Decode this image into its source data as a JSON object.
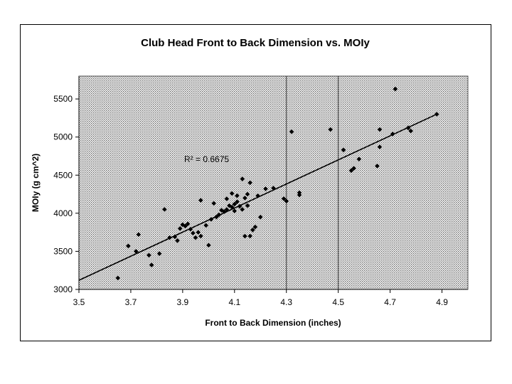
{
  "chart_data": {
    "type": "scatter",
    "title": "Club Head Front to Back Dimension vs. MOIy",
    "xlabel": "Front to Back Dimension (inches)",
    "ylabel": "MOIy (g cm^2)",
    "xlim": [
      3.5,
      5.0
    ],
    "ylim": [
      3000,
      5800
    ],
    "x_ticks": [
      "3.5",
      "3.7",
      "3.9",
      "4.1",
      "4.3",
      "4.5",
      "4.7",
      "4.9"
    ],
    "y_ticks": [
      "3000",
      "3500",
      "4000",
      "4500",
      "5000",
      "5500"
    ],
    "vertical_reference_lines": [
      4.3,
      4.5
    ],
    "annotation": "R² = 0.6675",
    "trendline": {
      "x1": 3.5,
      "y1": 3120,
      "x2": 4.88,
      "y2": 5300
    },
    "background": "stippled grey",
    "grid": false,
    "legend": "none",
    "marker_color": "#000000",
    "points": [
      {
        "x": 3.65,
        "y": 3150
      },
      {
        "x": 3.69,
        "y": 3570
      },
      {
        "x": 3.72,
        "y": 3500
      },
      {
        "x": 3.73,
        "y": 3720
      },
      {
        "x": 3.77,
        "y": 3450
      },
      {
        "x": 3.78,
        "y": 3320
      },
      {
        "x": 3.81,
        "y": 3470
      },
      {
        "x": 3.83,
        "y": 4050
      },
      {
        "x": 3.85,
        "y": 3680
      },
      {
        "x": 3.87,
        "y": 3690
      },
      {
        "x": 3.88,
        "y": 3640
      },
      {
        "x": 3.89,
        "y": 3800
      },
      {
        "x": 3.9,
        "y": 3850
      },
      {
        "x": 3.91,
        "y": 3830
      },
      {
        "x": 3.92,
        "y": 3860
      },
      {
        "x": 3.93,
        "y": 3790
      },
      {
        "x": 3.94,
        "y": 3740
      },
      {
        "x": 3.95,
        "y": 3680
      },
      {
        "x": 3.96,
        "y": 3750
      },
      {
        "x": 3.97,
        "y": 3700
      },
      {
        "x": 3.97,
        "y": 4170
      },
      {
        "x": 3.99,
        "y": 3840
      },
      {
        "x": 4.0,
        "y": 3580
      },
      {
        "x": 4.01,
        "y": 3920
      },
      {
        "x": 4.02,
        "y": 4130
      },
      {
        "x": 4.03,
        "y": 3950
      },
      {
        "x": 4.04,
        "y": 3980
      },
      {
        "x": 4.05,
        "y": 4040
      },
      {
        "x": 4.06,
        "y": 4020
      },
      {
        "x": 4.07,
        "y": 4050
      },
      {
        "x": 4.07,
        "y": 4190
      },
      {
        "x": 4.08,
        "y": 4100
      },
      {
        "x": 4.09,
        "y": 4080
      },
      {
        "x": 4.09,
        "y": 4260
      },
      {
        "x": 4.1,
        "y": 4120
      },
      {
        "x": 4.1,
        "y": 4030
      },
      {
        "x": 4.11,
        "y": 4230
      },
      {
        "x": 4.11,
        "y": 4150
      },
      {
        "x": 4.12,
        "y": 4090
      },
      {
        "x": 4.13,
        "y": 4050
      },
      {
        "x": 4.13,
        "y": 4450
      },
      {
        "x": 4.14,
        "y": 4200
      },
      {
        "x": 4.14,
        "y": 3700
      },
      {
        "x": 4.15,
        "y": 4100
      },
      {
        "x": 4.15,
        "y": 4250
      },
      {
        "x": 4.16,
        "y": 3700
      },
      {
        "x": 4.16,
        "y": 4400
      },
      {
        "x": 4.17,
        "y": 3780
      },
      {
        "x": 4.18,
        "y": 3820
      },
      {
        "x": 4.19,
        "y": 4230
      },
      {
        "x": 4.2,
        "y": 3950
      },
      {
        "x": 4.22,
        "y": 4320
      },
      {
        "x": 4.25,
        "y": 4330
      },
      {
        "x": 4.29,
        "y": 4190
      },
      {
        "x": 4.3,
        "y": 4160
      },
      {
        "x": 4.32,
        "y": 5070
      },
      {
        "x": 4.35,
        "y": 4270
      },
      {
        "x": 4.35,
        "y": 4240
      },
      {
        "x": 4.47,
        "y": 5100
      },
      {
        "x": 4.52,
        "y": 4830
      },
      {
        "x": 4.55,
        "y": 4560
      },
      {
        "x": 4.56,
        "y": 4590
      },
      {
        "x": 4.58,
        "y": 4710
      },
      {
        "x": 4.65,
        "y": 4620
      },
      {
        "x": 4.66,
        "y": 4870
      },
      {
        "x": 4.66,
        "y": 5100
      },
      {
        "x": 4.71,
        "y": 5040
      },
      {
        "x": 4.72,
        "y": 5630
      },
      {
        "x": 4.77,
        "y": 5120
      },
      {
        "x": 4.78,
        "y": 5080
      },
      {
        "x": 4.88,
        "y": 5300
      }
    ]
  }
}
